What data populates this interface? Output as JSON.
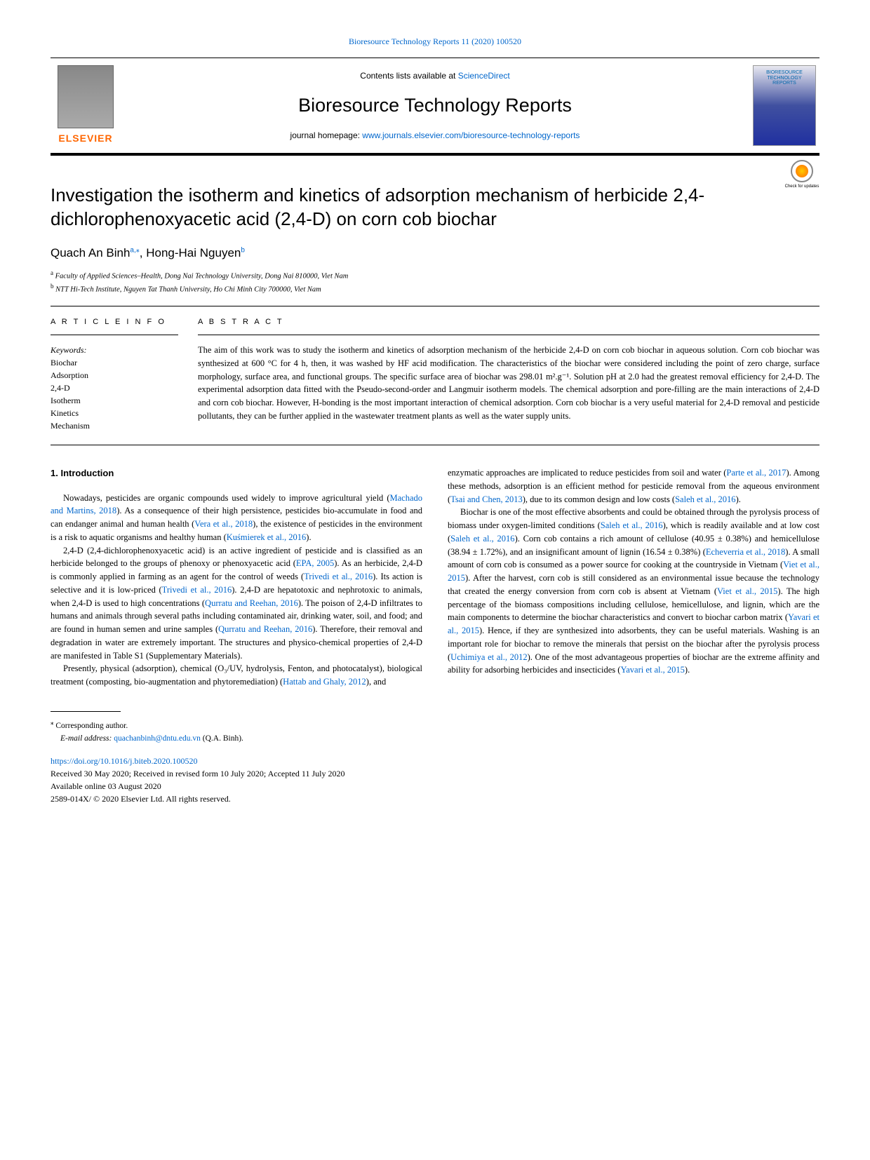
{
  "header": {
    "citation": "Bioresource Technology Reports 11 (2020) 100520",
    "contents_prefix": "Contents lists available at ",
    "contents_link": "ScienceDirect",
    "journal_name": "Bioresource Technology Reports",
    "homepage_prefix": "journal homepage: ",
    "homepage_link": "www.journals.elsevier.com/bioresource-technology-reports",
    "elsevier": "ELSEVIER",
    "cover_title": "BIORESOURCE TECHNOLOGY REPORTS",
    "check_updates": "Check for updates"
  },
  "title": "Investigation the isotherm and kinetics of adsorption mechanism of herbicide 2,4-dichlorophenoxyacetic acid (2,4-D) on corn cob biochar",
  "authors": {
    "a1_name": "Quach An Binh",
    "a1_sup": "a,",
    "a1_star": "⁎",
    "sep": ", ",
    "a2_name": "Hong-Hai Nguyen",
    "a2_sup": "b"
  },
  "affiliations": {
    "a_sup": "a",
    "a_text": " Faculty of Applied Sciences–Health, Dong Nai Technology University, Dong Nai 810000, Viet Nam",
    "b_sup": "b",
    "b_text": " NTT Hi-Tech Institute, Nguyen Tat Thanh University, Ho Chi Minh City 700000, Viet Nam"
  },
  "labels": {
    "article_info": "A R T I C L E  I N F O",
    "abstract": "A B S T R A C T",
    "keywords": "Keywords:"
  },
  "keywords": [
    "Biochar",
    "Adsorption",
    "2,4-D",
    "Isotherm",
    "Kinetics",
    "Mechanism"
  ],
  "abstract": "The aim of this work was to study the isotherm and kinetics of adsorption mechanism of the herbicide 2,4-D on corn cob biochar in aqueous solution. Corn cob biochar was synthesized at 600 °C for 4 h, then, it was washed by HF acid modification. The characteristics of the biochar were considered including the point of zero charge, surface morphology, surface area, and functional groups. The specific surface area of biochar was 298.01 m².g⁻¹. Solution pH at 2.0 had the greatest removal efficiency for 2,4-D. The experimental adsorption data fitted with the Pseudo-second-order and Langmuir isotherm models. The chemical adsorption and pore-filling are the main interactions of 2,4-D and corn cob biochar. However, H-bonding is the most important interaction of chemical adsorption. Corn cob biochar is a very useful material for 2,4-D removal and pesticide pollutants, they can be further applied in the wastewater treatment plants as well as the water supply units.",
  "body": {
    "h_intro": "1. Introduction",
    "left_p1_a": "Nowadays, pesticides are organic compounds used widely to improve agricultural yield (",
    "left_p1_l1": "Machado and Martins, 2018",
    "left_p1_b": "). As a consequence of their high persistence, pesticides bio-accumulate in food and can endanger animal and human health (",
    "left_p1_l2": "Vera et al., 2018",
    "left_p1_c": "), the existence of pesticides in the environment is a risk to aquatic organisms and healthy human (",
    "left_p1_l3": "Kuśmierek et al., 2016",
    "left_p1_d": ").",
    "left_p2_a": "2,4-D (2,4-dichlorophenoxyacetic acid) is an active ingredient of pesticide and is classified as an herbicide belonged to the groups of phenoxy or phenoxyacetic acid (",
    "left_p2_l1": "EPA, 2005",
    "left_p2_b": "). As an herbicide, 2,4-D is commonly applied in farming as an agent for the control of weeds (",
    "left_p2_l2": "Trivedi et al., 2016",
    "left_p2_c": "). Its action is selective and it is low-priced (",
    "left_p2_l3": "Trivedi et al., 2016",
    "left_p2_d": "). 2,4-D are hepatotoxic and nephrotoxic to animals, when 2,4-D is used to high concentrations (",
    "left_p2_l4": "Qurratu and Reehan, 2016",
    "left_p2_e": "). The poison of 2,4-D infiltrates to humans and animals through several paths including contaminated air, drinking water, soil, and food; and are found in human semen and urine samples (",
    "left_p2_l5": "Qurratu and Reehan, 2016",
    "left_p2_f": "). Therefore, their removal and degradation in water are extremely important. The structures and physico-chemical properties of 2,4-D are manifested in Table S1 (Supplementary Materials).",
    "left_p3_a": "Presently, physical (adsorption), chemical (O₃/UV, hydrolysis, Fenton, and photocatalyst), biological treatment (composting, bio-augmentation and phytoremediation) (",
    "left_p3_l1": "Hattab and Ghaly, 2012",
    "left_p3_b": "), and",
    "right_p1_a": "enzymatic approaches are implicated to reduce pesticides from soil and water (",
    "right_p1_l1": "Parte et al., 2017",
    "right_p1_b": "). Among these methods, adsorption is an efficient method for pesticide removal from the aqueous environment (",
    "right_p1_l2": "Tsai and Chen, 2013",
    "right_p1_c": "), due to its common design and low costs (",
    "right_p1_l3": "Saleh et al., 2016",
    "right_p1_d": ").",
    "right_p2_a": "Biochar is one of the most effective absorbents and could be obtained through the pyrolysis process of biomass under oxygen-limited conditions (",
    "right_p2_l1": "Saleh et al., 2016",
    "right_p2_b": "), which is readily available and at low cost (",
    "right_p2_l2": "Saleh et al., 2016",
    "right_p2_c": "). Corn cob contains a rich amount of cellulose (40.95 ± 0.38%) and hemicellulose (38.94 ± 1.72%), and an insignificant amount of lignin (16.54 ± 0.38%) (",
    "right_p2_l3": "Echeverria et al., 2018",
    "right_p2_d": "). A small amount of corn cob is consumed as a power source for cooking at the countryside in Vietnam (",
    "right_p2_l4": "Viet et al., 2015",
    "right_p2_e": "). After the harvest, corn cob is still considered as an environmental issue because the technology that created the energy conversion from corn cob is absent at Vietnam (",
    "right_p2_l5": "Viet et al., 2015",
    "right_p2_f": "). The high percentage of the biomass compositions including cellulose, hemicellulose, and lignin, which are the main components to determine the biochar characteristics and convert to biochar carbon matrix (",
    "right_p2_l6": "Yavari et al., 2015",
    "right_p2_g": "). Hence, if they are synthesized into adsorbents, they can be useful materials. Washing is an important role for biochar to remove the minerals that persist on the biochar after the pyrolysis process (",
    "right_p2_l7": "Uchimiya et al., 2012",
    "right_p2_h": "). One of the most advantageous properties of biochar are the extreme affinity and ability for adsorbing herbicides and insecticides (",
    "right_p2_l8": "Yavari et al., 2015",
    "right_p2_i": ")."
  },
  "footer": {
    "corr_sup": "⁎",
    "corr": " Corresponding author.",
    "email_label": "E-mail address: ",
    "email": "quachanbinh@dntu.edu.vn",
    "email_suffix": " (Q.A. Binh).",
    "doi": "https://doi.org/10.1016/j.biteb.2020.100520",
    "received": "Received 30 May 2020; Received in revised form 10 July 2020; Accepted 11 July 2020",
    "available": "Available online 03 August 2020",
    "copyright": "2589-014X/ © 2020 Elsevier Ltd. All rights reserved."
  },
  "colors": {
    "link": "#0066cc",
    "elsevier": "#ff6600"
  }
}
